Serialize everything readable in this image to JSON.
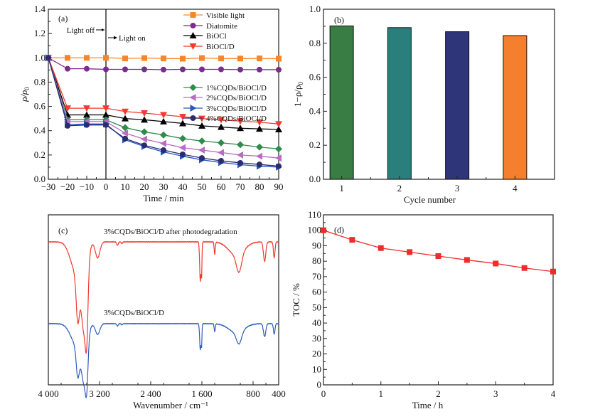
{
  "chart_data": [
    {
      "panel": "(a)",
      "type": "line",
      "xlabel": "Time / min",
      "ylabel": "ρ/ρ0",
      "xlim": [
        -30,
        90
      ],
      "ylim": [
        0.0,
        1.4
      ],
      "xticks": [
        -30,
        -20,
        -10,
        0,
        10,
        20,
        30,
        40,
        50,
        60,
        70,
        80,
        90
      ],
      "yticks": [
        0.0,
        0.2,
        0.4,
        0.6,
        0.8,
        1.0,
        1.2,
        1.4
      ],
      "ytick_labels": [
        "0.0",
        "0.2",
        "0.4",
        "0.6",
        "0.8",
        "1.0",
        "1.2",
        "1.4"
      ],
      "xtick_labels": [
        "−30",
        "−20",
        "−10",
        "0",
        "10",
        "20",
        "30",
        "40",
        "50",
        "60",
        "70",
        "80",
        "90"
      ],
      "annotations": {
        "light_off": "Light off",
        "light_on": "Light on",
        "divider_x": 0
      },
      "legend_placement": "top-right",
      "x": [
        -30,
        -20,
        -10,
        0,
        10,
        20,
        30,
        40,
        50,
        60,
        70,
        80,
        90
      ],
      "series": [
        {
          "name": "Visible light",
          "color": "#f7862a",
          "marker": "square",
          "values": [
            1.0,
            1.0,
            1.0,
            1.0,
            0.995,
            0.998,
            0.995,
            0.993,
            0.998,
            0.995,
            0.994,
            0.995,
            0.993
          ]
        },
        {
          "name": "Diatomite",
          "color": "#7b2d8e",
          "marker": "circle",
          "values": [
            1.0,
            0.91,
            0.91,
            0.905,
            0.905,
            0.905,
            0.903,
            0.905,
            0.905,
            0.905,
            0.903,
            0.903,
            0.902
          ]
        },
        {
          "name": "BiOCl",
          "color": "#000000",
          "marker": "triangle-up",
          "values": [
            1.0,
            0.53,
            0.53,
            0.53,
            0.5,
            0.49,
            0.475,
            0.46,
            0.44,
            0.43,
            0.42,
            0.415,
            0.41
          ]
        },
        {
          "name": "BiOCl/D",
          "color": "#f23a2f",
          "marker": "triangle-down",
          "values": [
            1.0,
            0.585,
            0.585,
            0.585,
            0.558,
            0.545,
            0.53,
            0.515,
            0.5,
            0.49,
            0.478,
            0.47,
            0.455
          ]
        },
        {
          "name": "1%CQDs/BiOCl/D",
          "color": "#2e8b4a",
          "marker": "diamond",
          "values": [
            1.0,
            0.49,
            0.49,
            0.49,
            0.425,
            0.39,
            0.365,
            0.335,
            0.315,
            0.3,
            0.285,
            0.265,
            0.25
          ]
        },
        {
          "name": "2%CQDs/BiOCl/D",
          "color": "#b86cc4",
          "marker": "triangle-left",
          "values": [
            1.0,
            0.475,
            0.475,
            0.475,
            0.38,
            0.33,
            0.295,
            0.26,
            0.24,
            0.22,
            0.2,
            0.19,
            0.175
          ]
        },
        {
          "name": "3%CQDs/BiOCl/D",
          "color": "#2458c0",
          "marker": "triangle-right",
          "values": [
            1.0,
            0.45,
            0.455,
            0.455,
            0.325,
            0.27,
            0.225,
            0.19,
            0.16,
            0.138,
            0.12,
            0.108,
            0.1
          ]
        },
        {
          "name": "4%CQDs/BiOCl/D",
          "color": "#2b2b6e",
          "marker": "circle",
          "values": [
            1.0,
            0.44,
            0.447,
            0.447,
            0.335,
            0.28,
            0.24,
            0.205,
            0.175,
            0.152,
            0.135,
            0.122,
            0.108
          ]
        }
      ]
    },
    {
      "panel": "(b)",
      "type": "bar",
      "xlabel": "Cycle number",
      "ylabel": "1−ρ/ρ0",
      "ylim": [
        0.0,
        1.0
      ],
      "yticks": [
        0.0,
        0.2,
        0.4,
        0.6,
        0.8,
        1.0
      ],
      "ytick_labels": [
        "0.0",
        "0.2",
        "0.4",
        "0.6",
        "0.8",
        "1.0"
      ],
      "categories": [
        "1",
        "2",
        "3",
        "4"
      ],
      "values": [
        0.902,
        0.892,
        0.868,
        0.845
      ],
      "colors": [
        "#3a7d44",
        "#2a7e7b",
        "#2e3679",
        "#f47f2e"
      ]
    },
    {
      "panel": "(c)",
      "type": "line",
      "xlabel": "Wavenumber / cm⁻¹",
      "ylabel": "",
      "xlim": [
        4000,
        400
      ],
      "xticks": [
        4000,
        3200,
        2400,
        1600,
        800,
        400
      ],
      "xtick_labels": [
        "4 000",
        "3 200",
        "2 400",
        "1 600",
        "800",
        "400"
      ],
      "yticks_shown": false,
      "series": [
        {
          "name": "3%CQDs/BiOCl/D after photodegradation",
          "color": "#f03a2e",
          "peaks_cm1": [
            3540,
            3440,
            3400,
            3230,
            2920,
            2850,
            1630,
            1610,
            1400,
            1020,
            620,
            470
          ]
        },
        {
          "name": "3%CQDs/BiOCl/D",
          "color": "#2d5fb8",
          "peaks_cm1": [
            3540,
            3440,
            3400,
            3230,
            2920,
            2850,
            1630,
            1610,
            1400,
            1020,
            620,
            470
          ]
        }
      ]
    },
    {
      "panel": "(d)",
      "type": "line",
      "xlabel": "Time / h",
      "ylabel": "TOC / %",
      "xlim": [
        0,
        4
      ],
      "ylim": [
        0,
        110
      ],
      "xticks": [
        0,
        1,
        2,
        3,
        4
      ],
      "yticks": [
        0,
        10,
        20,
        30,
        40,
        50,
        60,
        70,
        80,
        90,
        100,
        110
      ],
      "x": [
        0,
        0.5,
        1,
        1.5,
        2,
        2.5,
        3,
        3.5,
        4
      ],
      "series": [
        {
          "name": "TOC",
          "color": "#ef2b2b",
          "marker": "square",
          "values": [
            100,
            93.8,
            88.5,
            85.9,
            83.3,
            80.8,
            78.5,
            75.6,
            73.3
          ]
        }
      ]
    }
  ]
}
